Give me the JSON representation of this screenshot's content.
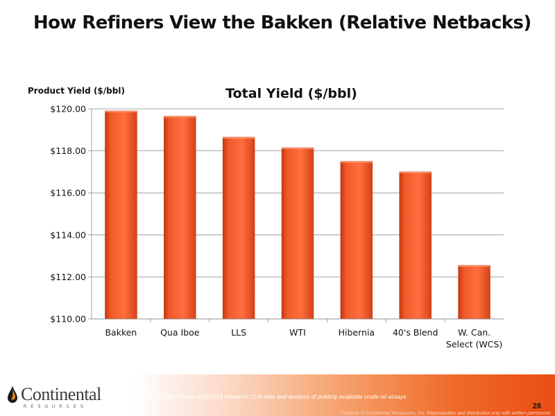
{
  "slide": {
    "title": "How Refiners View the Bakken (Relative Netbacks)",
    "footnote": "*NYH Product Prices 4/30/2014 based on CLR data and analysis of publicly available crude oil assays",
    "page_number": "28",
    "copyright": "Property of Continental Resources, Inc. Reproduction and distribution only with written permission",
    "logo_text": "Continental",
    "logo_subtext": "RESOURCES"
  },
  "chart_data": {
    "type": "bar",
    "title": "Total Yield ($/bbl)",
    "ylabel": "Product Yield ($/bbl)",
    "xlabel": "",
    "categories": [
      "Bakken",
      "Qua Iboe",
      "LLS",
      "WTI",
      "Hibernia",
      "40's Blend",
      "W. Can. Select (WCS)"
    ],
    "values": [
      119.9,
      119.65,
      118.65,
      118.15,
      117.5,
      117.0,
      112.55
    ],
    "ylim": [
      110,
      120
    ],
    "yticks": [
      110,
      112,
      114,
      116,
      118,
      120
    ],
    "ytick_labels": [
      "$110.00",
      "$112.00",
      "$114.00",
      "$116.00",
      "$118.00",
      "$120.00"
    ],
    "gridlines": true,
    "bar_color": "#f15a2b"
  }
}
